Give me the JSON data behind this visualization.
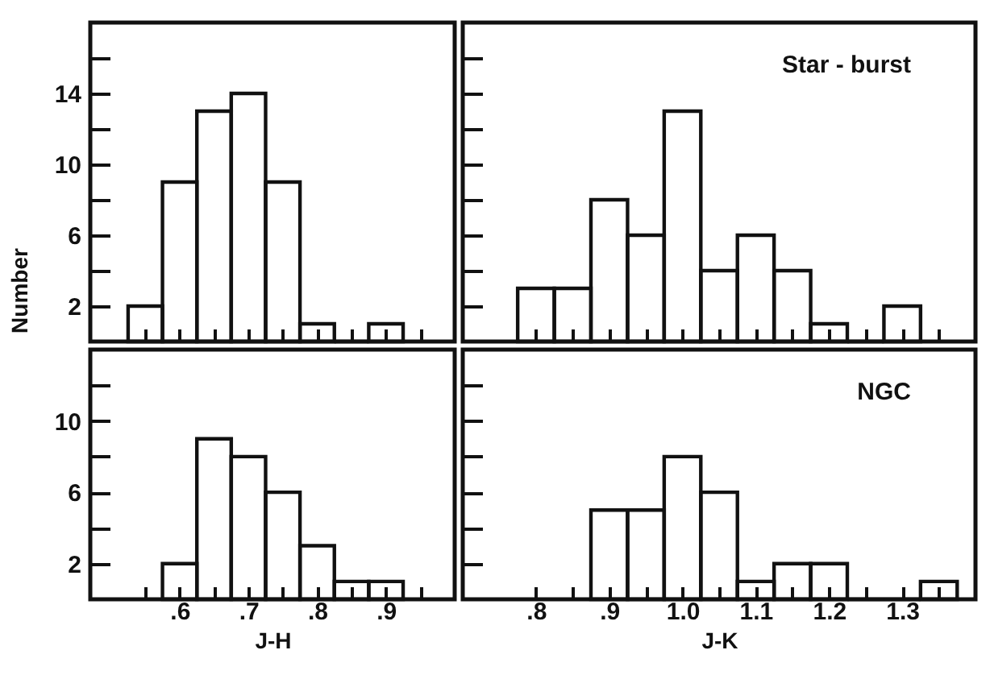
{
  "chart_data": [
    {
      "type": "histogram",
      "ylabel": "Number",
      "bins": [
        0.525,
        0.575,
        0.625,
        0.675,
        0.725,
        0.775,
        0.825,
        0.875,
        0.925
      ],
      "values": [
        2,
        9,
        13,
        14,
        9,
        1,
        0,
        1
      ],
      "color": "#111111",
      "xlim": [
        0.47,
        1.0
      ],
      "ylim": [
        0,
        18
      ],
      "xticks": [
        {
          "value": 0.55,
          "label": null
        },
        {
          "value": 0.6,
          "label": null
        },
        {
          "value": 0.65,
          "label": null
        },
        {
          "value": 0.7,
          "label": null
        },
        {
          "value": 0.75,
          "label": null
        },
        {
          "value": 0.8,
          "label": null
        },
        {
          "value": 0.85,
          "label": null
        },
        {
          "value": 0.9,
          "label": null
        },
        {
          "value": 0.95,
          "label": null
        }
      ],
      "yticks": [
        2,
        {
          "value": 4,
          "label": null
        },
        6,
        {
          "value": 8,
          "label": null
        },
        10,
        {
          "value": 12,
          "label": null
        },
        14,
        {
          "value": 16,
          "label": null
        }
      ],
      "tick_labels": "y"
    },
    {
      "type": "histogram",
      "title": "Star - burst",
      "bins": [
        0.775,
        0.825,
        0.875,
        0.925,
        0.975,
        1.025,
        1.075,
        1.125,
        1.175,
        1.225,
        1.275,
        1.325
      ],
      "values": [
        3,
        3,
        8,
        6,
        13,
        4,
        6,
        4,
        1,
        0,
        2
      ],
      "color": "#111111",
      "xlim": [
        0.7,
        1.4
      ],
      "ylim": [
        0,
        18
      ],
      "xticks": [
        {
          "value": 0.8,
          "label": null
        },
        {
          "value": 0.85,
          "label": null
        },
        {
          "value": 0.9,
          "label": null
        },
        {
          "value": 0.95,
          "label": null
        },
        {
          "value": 1.0,
          "label": null
        },
        {
          "value": 1.05,
          "label": null
        },
        {
          "value": 1.1,
          "label": null
        },
        {
          "value": 1.15,
          "label": null
        },
        {
          "value": 1.2,
          "label": null
        },
        {
          "value": 1.25,
          "label": null
        },
        {
          "value": 1.3,
          "label": null
        },
        {
          "value": 1.35,
          "label": null
        }
      ],
      "yticks": [
        {
          "value": 2,
          "label": null
        },
        {
          "value": 4,
          "label": null
        },
        {
          "value": 6,
          "label": null
        },
        {
          "value": 8,
          "label": null
        },
        {
          "value": 10,
          "label": null
        },
        {
          "value": 12,
          "label": null
        },
        {
          "value": 14,
          "label": null
        },
        {
          "value": 16,
          "label": null
        }
      ],
      "tick_labels": false
    },
    {
      "type": "histogram",
      "xlabel": "J-H",
      "bins": [
        0.575,
        0.625,
        0.675,
        0.725,
        0.775,
        0.825,
        0.875,
        0.925
      ],
      "values": [
        2,
        9,
        8,
        6,
        3,
        1,
        1
      ],
      "color": "#111111",
      "xlim": [
        0.47,
        1.0
      ],
      "ylim": [
        0,
        14
      ],
      "xticks": [
        {
          "value": 0.55,
          "label": null
        },
        {
          "value": 0.6,
          "label": ".6"
        },
        {
          "value": 0.65,
          "label": null
        },
        {
          "value": 0.7,
          "label": ".7"
        },
        {
          "value": 0.75,
          "label": null
        },
        {
          "value": 0.8,
          "label": ".8"
        },
        {
          "value": 0.85,
          "label": null
        },
        {
          "value": 0.9,
          "label": ".9"
        },
        {
          "value": 0.95,
          "label": null
        }
      ],
      "yticks": [
        2,
        {
          "value": 4,
          "label": null
        },
        6,
        {
          "value": 8,
          "label": null
        },
        10,
        {
          "value": 12,
          "label": null
        }
      ]
    },
    {
      "type": "histogram",
      "title": "NGC",
      "xlabel": "J-K",
      "bins": [
        0.875,
        0.925,
        0.975,
        1.025,
        1.075,
        1.125,
        1.175,
        1.225,
        1.275,
        1.325,
        1.375
      ],
      "values": [
        5,
        5,
        8,
        6,
        1,
        2,
        2,
        0,
        0,
        1
      ],
      "color": "#111111",
      "xlim": [
        0.7,
        1.4
      ],
      "ylim": [
        0,
        14
      ],
      "xticks": [
        {
          "value": 0.8,
          "label": ".8"
        },
        {
          "value": 0.85,
          "label": null
        },
        {
          "value": 0.9,
          "label": ".9"
        },
        {
          "value": 0.95,
          "label": null
        },
        {
          "value": 1.0,
          "label": "1.0"
        },
        {
          "value": 1.05,
          "label": null
        },
        {
          "value": 1.1,
          "label": "1.1"
        },
        {
          "value": 1.15,
          "label": null
        },
        {
          "value": 1.2,
          "label": "1.2"
        },
        {
          "value": 1.25,
          "label": null
        },
        {
          "value": 1.3,
          "label": "1.3"
        },
        {
          "value": 1.35,
          "label": null
        }
      ],
      "yticks": [
        {
          "value": 2,
          "label": null
        },
        {
          "value": 4,
          "label": null
        },
        {
          "value": 6,
          "label": null
        },
        {
          "value": 8,
          "label": null
        },
        {
          "value": 10,
          "label": null
        },
        {
          "value": 12,
          "label": null
        }
      ],
      "tick_labels": "x"
    }
  ]
}
